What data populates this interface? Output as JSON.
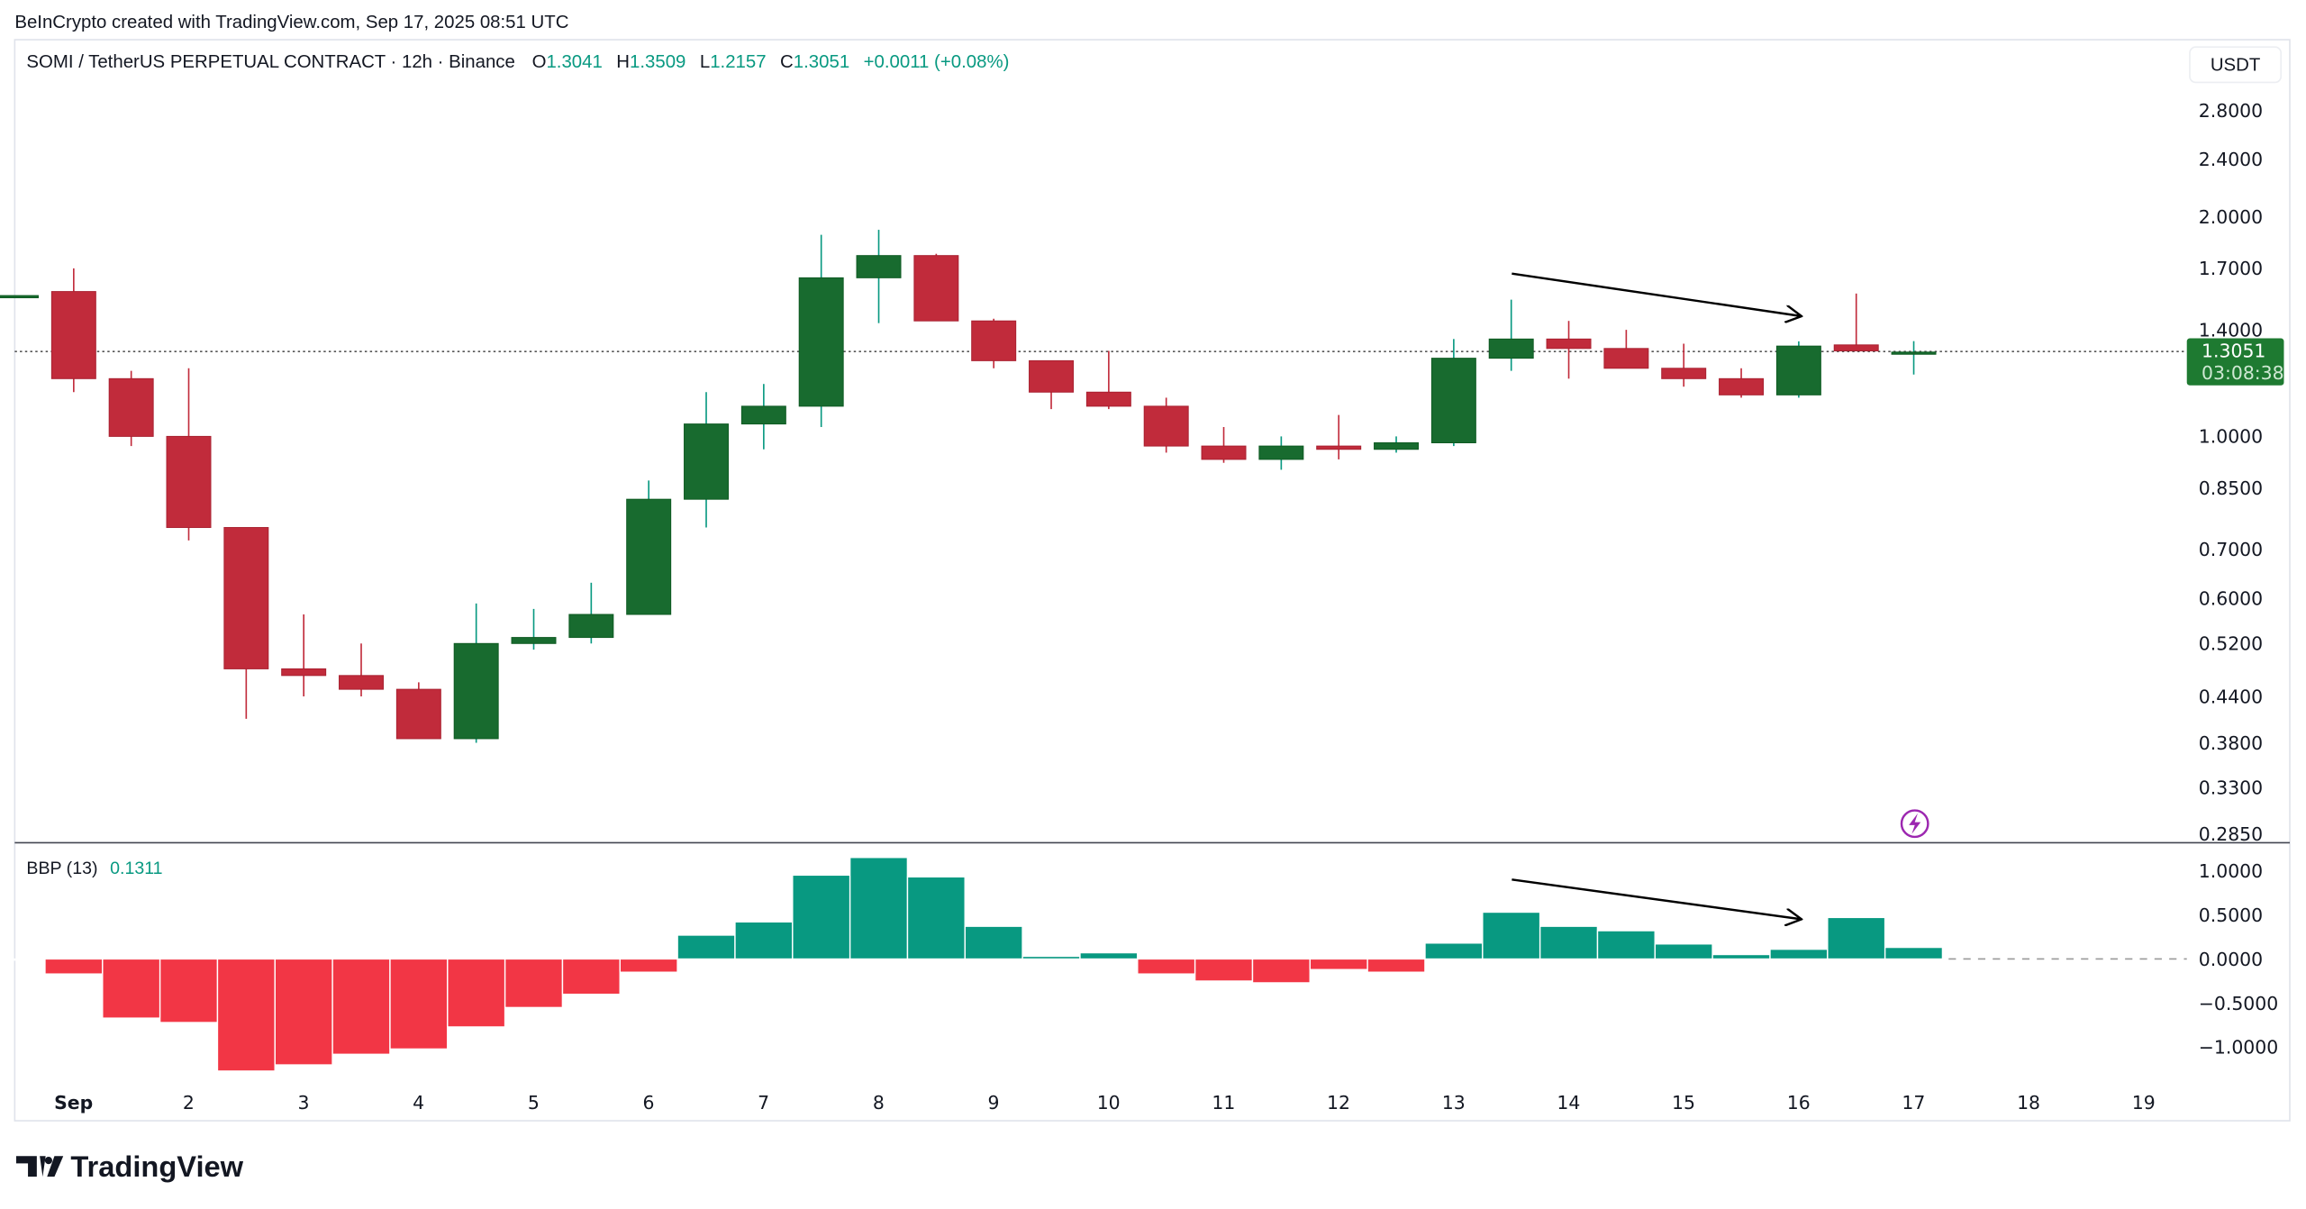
{
  "credit": "BeInCrypto created with TradingView.com, Sep 17, 2025 08:51 UTC",
  "legend": {
    "symbol": "SOMI / TetherUS PERPETUAL CONTRACT · 12h · Binance",
    "o_label": "O",
    "o": "1.3041",
    "h_label": "H",
    "h": "1.3509",
    "l_label": "L",
    "l": "1.2157",
    "c_label": "C",
    "c": "1.3051",
    "change": "+0.0011 (+0.08%)"
  },
  "currency_button": "USDT",
  "last_price": {
    "value": "1.3051",
    "countdown": "03:08:38"
  },
  "indicator": {
    "name": "BBP (13)",
    "value": "0.1311"
  },
  "logo": "TradingView",
  "colors": {
    "up": "#186b2f",
    "down": "#c12b3b",
    "bbp_up": "#089981",
    "bbp_down": "#f23645",
    "last_price_bg": "#1e7a31",
    "annotation": "#000000",
    "alert_icon": "#9c27b0"
  },
  "icons": {
    "alert": "lightning-bolt-icon",
    "logo": "tradingview-logo-icon"
  },
  "chart_data": [
    {
      "type": "candlestick",
      "title": "SOMI / TetherUS PERPETUAL CONTRACT · 12h · Binance",
      "y_scale": "log",
      "ylim": [
        0.285,
        2.8
      ],
      "y_ticks": [
        "2.8000",
        "2.4000",
        "2.0000",
        "1.7000",
        "1.4000",
        "1.0000",
        "0.8500",
        "0.7000",
        "0.6000",
        "0.5200",
        "0.4400",
        "0.3800",
        "0.3300",
        "0.2850"
      ],
      "x_ticks": [
        "Sep",
        "2",
        "3",
        "4",
        "5",
        "6",
        "7",
        "8",
        "9",
        "10",
        "11",
        "12",
        "13",
        "14",
        "15",
        "16",
        "17",
        "18",
        "19"
      ],
      "grid": false,
      "annotations": [
        "downward arrow from Sep 13 high toward Sep 16 high"
      ],
      "x": [
        "Aug 31 12:00",
        "Sep 1 00:00",
        "Sep 1 12:00",
        "Sep 2 00:00",
        "Sep 2 12:00",
        "Sep 3 00:00",
        "Sep 3 12:00",
        "Sep 4 00:00",
        "Sep 4 12:00",
        "Sep 5 00:00",
        "Sep 5 12:00",
        "Sep 6 00:00",
        "Sep 6 12:00",
        "Sep 7 00:00",
        "Sep 7 12:00",
        "Sep 8 00:00",
        "Sep 8 12:00",
        "Sep 9 00:00",
        "Sep 9 12:00",
        "Sep 10 00:00",
        "Sep 10 12:00",
        "Sep 11 00:00",
        "Sep 11 12:00",
        "Sep 12 00:00",
        "Sep 12 12:00",
        "Sep 13 00:00",
        "Sep 13 12:00",
        "Sep 14 00:00",
        "Sep 14 12:00",
        "Sep 15 00:00",
        "Sep 15 12:00",
        "Sep 16 00:00",
        "Sep 16 12:00",
        "Sep 17 00:00"
      ],
      "open": [
        1.56,
        1.58,
        1.2,
        1.0,
        0.75,
        0.48,
        0.47,
        0.45,
        0.385,
        0.52,
        0.53,
        0.57,
        0.82,
        1.04,
        1.1,
        1.65,
        1.77,
        1.44,
        1.27,
        1.15,
        1.1,
        0.97,
        0.93,
        0.97,
        0.96,
        0.98,
        1.28,
        1.36,
        1.32,
        1.24,
        1.2,
        1.14,
        1.335,
        1.3041
      ],
      "high": [
        1.56,
        1.7,
        1.23,
        1.24,
        0.75,
        0.57,
        0.52,
        0.46,
        0.59,
        0.58,
        0.63,
        0.87,
        1.15,
        1.18,
        1.89,
        1.92,
        1.78,
        1.45,
        1.27,
        1.31,
        1.13,
        1.03,
        1.0,
        1.07,
        1.0,
        1.36,
        1.54,
        1.44,
        1.4,
        1.34,
        1.24,
        1.35,
        1.57,
        1.3509
      ],
      "low": [
        1.56,
        1.15,
        0.97,
        0.72,
        0.41,
        0.44,
        0.44,
        0.385,
        0.38,
        0.51,
        0.52,
        0.57,
        0.75,
        0.96,
        1.03,
        1.43,
        1.44,
        1.24,
        1.09,
        1.09,
        0.95,
        0.92,
        0.9,
        0.93,
        0.95,
        0.97,
        1.23,
        1.2,
        1.24,
        1.17,
        1.13,
        1.13,
        1.31,
        1.2157
      ],
      "close": [
        1.56,
        1.2,
        1.0,
        0.75,
        0.48,
        0.47,
        0.45,
        0.385,
        0.52,
        0.53,
        0.57,
        0.82,
        1.04,
        1.1,
        1.65,
        1.77,
        1.44,
        1.27,
        1.15,
        1.1,
        0.97,
        0.93,
        0.97,
        0.96,
        0.98,
        1.28,
        1.36,
        1.32,
        1.24,
        1.2,
        1.14,
        1.33,
        1.31,
        1.3051
      ]
    },
    {
      "type": "bar",
      "title": "BBP (13)",
      "ylim": [
        -1.3,
        1.2
      ],
      "y_ticks": [
        "1.0000",
        "0.5000",
        "0.0000",
        "−0.5000",
        "−1.0000"
      ],
      "annotations": [
        "downward arrow from Sep 13 peak toward Sep 16 peak"
      ],
      "values": [
        0,
        -0.17,
        -0.67,
        -0.72,
        -1.27,
        -1.2,
        -1.08,
        -1.02,
        -0.77,
        -0.55,
        -0.4,
        -0.15,
        0.27,
        0.42,
        0.95,
        1.15,
        0.93,
        0.37,
        0.03,
        0.07,
        -0.17,
        -0.25,
        -0.27,
        -0.12,
        -0.15,
        0.18,
        0.53,
        0.37,
        0.32,
        0.17,
        0.05,
        0.11,
        0.47,
        0.1311
      ]
    }
  ]
}
